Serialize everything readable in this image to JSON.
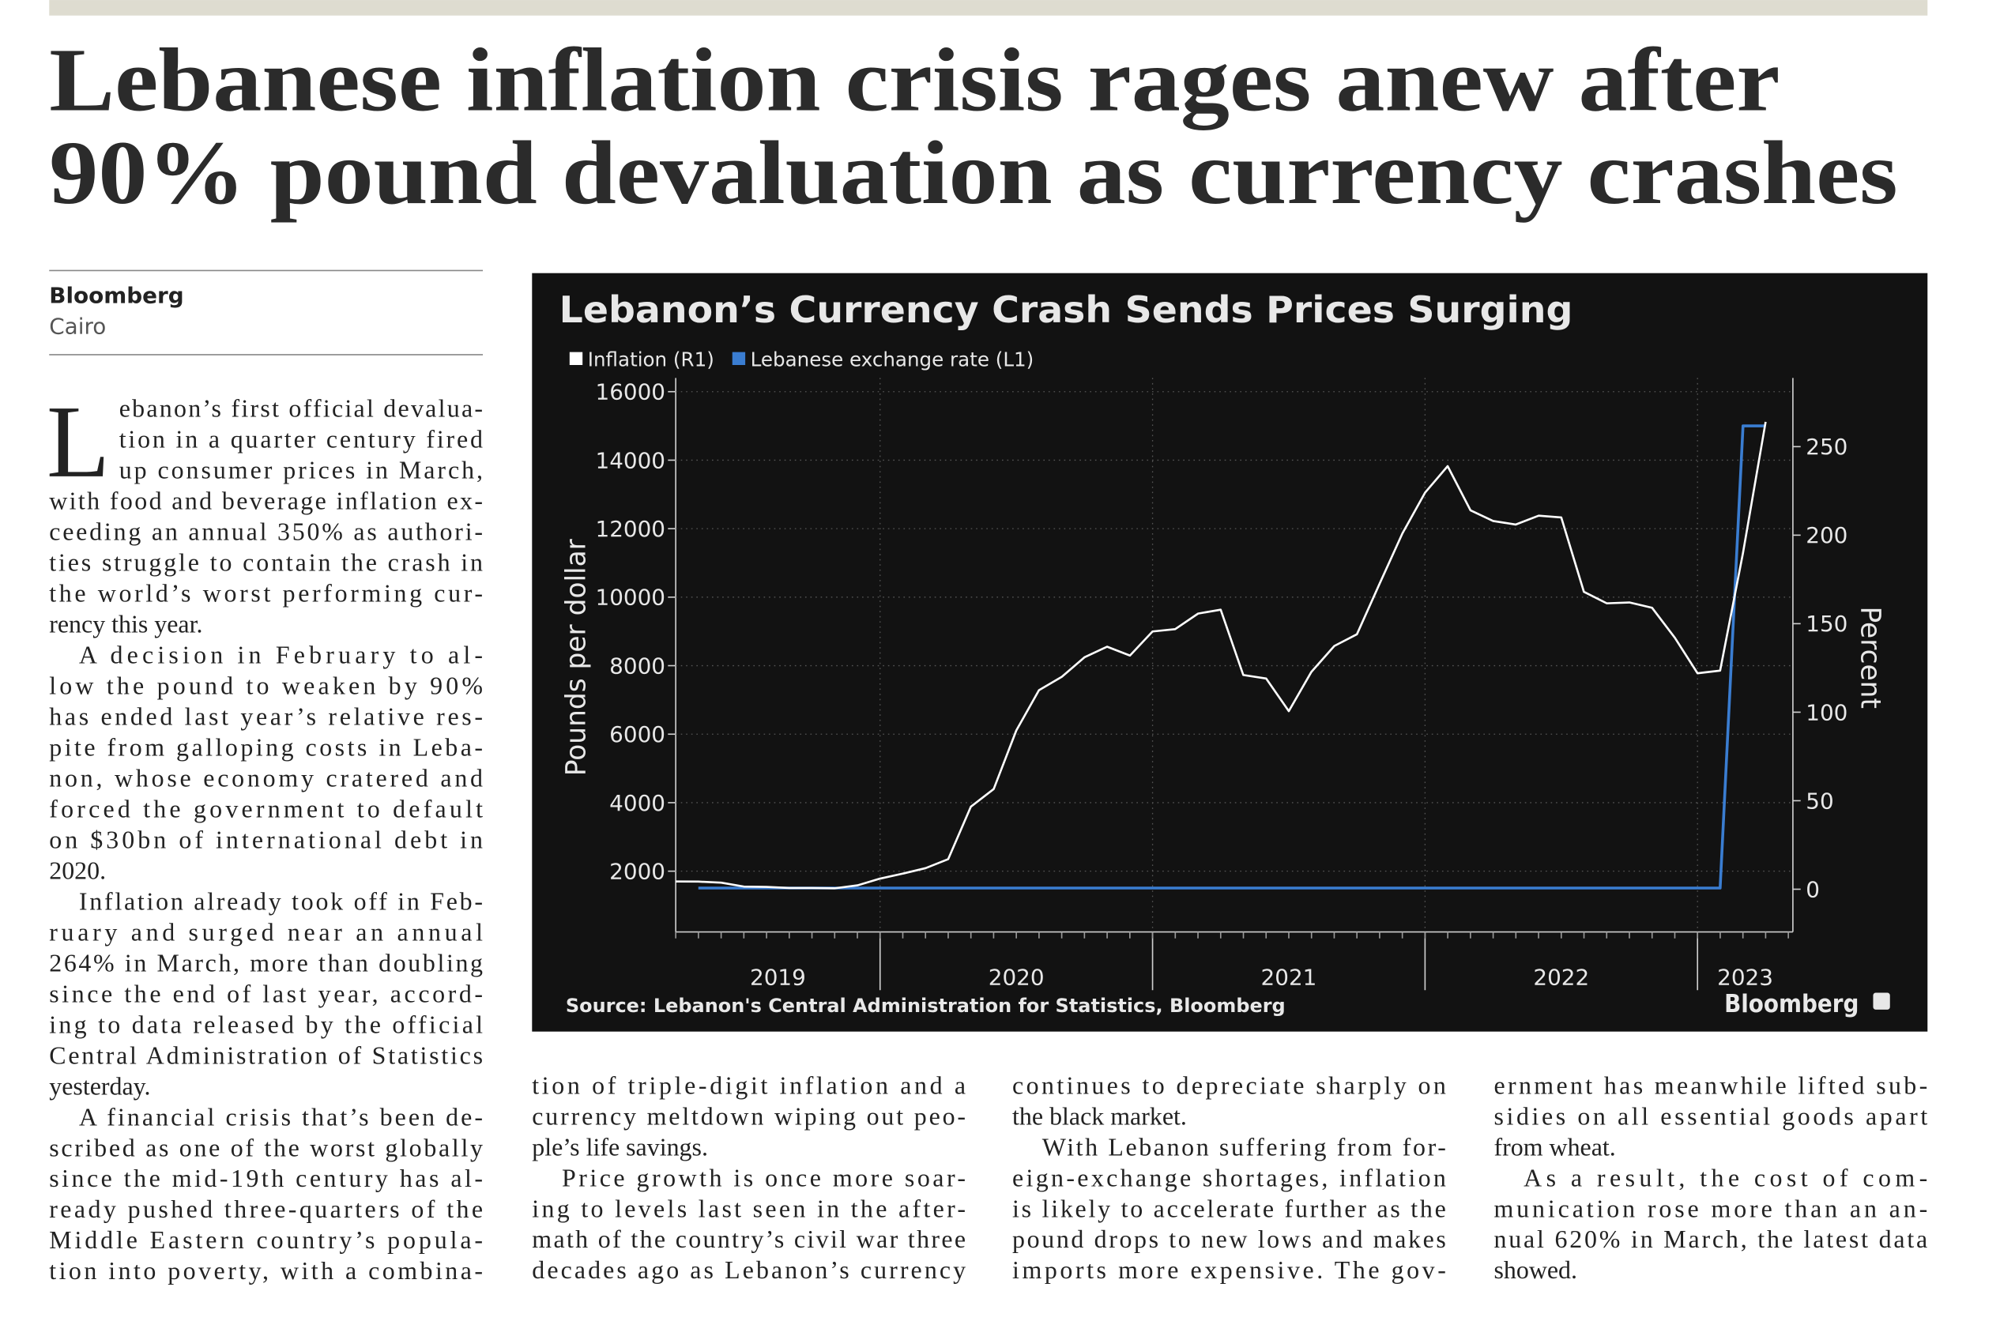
{
  "header": {
    "headline": [
      "Lebanese inflation crisis rages anew after",
      "90% pound devaluation as currency crashes"
    ]
  },
  "byline": {
    "source": "Bloomberg",
    "location": "Cairo"
  },
  "article": {
    "drop_cap": "L",
    "columns": [
      [
        [
          "ebanon’s first official devalua-",
          "tion in a quarter century fired",
          "up consumer prices in March,",
          "with food and beverage inflation ex-",
          "ceeding an annual 350% as authori-",
          "ties struggle to contain the crash in",
          "the world’s worst performing cur-",
          "rency this year."
        ],
        [
          "A decision in February to al-",
          "low the pound to weaken by 90%",
          "has ended last year’s relative res-",
          "pite from galloping costs in Leba-",
          "non, whose economy cratered and",
          "forced the government to default",
          "on $30bn of international debt in",
          "2020."
        ],
        [
          "Inflation already took off in Feb-",
          "ruary and surged near an annual",
          "264% in March, more than doubling",
          "since the end of last year, accord-",
          "ing to data released by the official",
          "Central Administration of Statistics",
          "yesterday."
        ],
        [
          "A financial crisis that’s been de-",
          "scribed as one of the worst globally",
          "since the mid-19th century has al-",
          "ready pushed three-quarters of the",
          "Middle Eastern country’s popula-",
          "tion into poverty, with a combina-"
        ]
      ],
      [
        [
          "tion of triple-digit inflation and a",
          "currency meltdown wiping out peo-",
          "ple’s life savings."
        ],
        [
          "Price growth is once more soar-",
          "ing to levels last seen in the after-",
          "math of the country’s civil war three",
          "decades ago as Lebanon’s currency"
        ]
      ],
      [
        [
          "continues to depreciate sharply on",
          "the black market."
        ],
        [
          "With Lebanon suffering from for-",
          "eign-exchange shortages, inflation",
          "is likely to accelerate further as the",
          "pound drops to new lows and makes",
          "imports more expensive. The gov-"
        ]
      ],
      [
        [
          "ernment has meanwhile lifted sub-",
          "sidies on all essential goods apart",
          "from wheat."
        ],
        [
          "As a result, the cost of com-",
          "munication rose more than an an-",
          "nual 620% in March, the latest data",
          "showed."
        ]
      ]
    ]
  },
  "chart_data": {
    "type": "line",
    "title": "Lebanon’s Currency Crash Sends Prices Surging",
    "y_label": "Pounds per dollar",
    "y2_label": "Percent",
    "source": "Source: Lebanon's Central Administration for Statistics, Bloomberg",
    "logo": "Bloomberg",
    "xlim": [
      2019.25,
      2023.35
    ],
    "xticks": [
      {
        "value": 2019,
        "label": "2019"
      },
      {
        "value": 2020,
        "label": "2020"
      },
      {
        "value": 2021,
        "label": "2021"
      },
      {
        "value": 2022,
        "label": "2022"
      },
      {
        "value": 2023,
        "label": "2023"
      }
    ],
    "ylim": [
      0,
      16400
    ],
    "yticks": [
      2000,
      4000,
      6000,
      8000,
      10000,
      12000,
      14000,
      16000
    ],
    "y2lim": [
      -28.5,
      288.8
    ],
    "y2ticks": [
      0,
      50,
      100,
      150,
      200,
      250
    ],
    "grid": true,
    "legend": "top-left",
    "series": [
      {
        "name": "Inflation (R1)",
        "color": "#ffffff",
        "axis": "y2",
        "x": [
          2019.25,
          2019.333,
          2019.417,
          2019.5,
          2019.583,
          2019.667,
          2019.75,
          2019.833,
          2019.917,
          2020,
          2020.083,
          2020.167,
          2020.25,
          2020.333,
          2020.417,
          2020.5,
          2020.583,
          2020.667,
          2020.75,
          2020.833,
          2020.917,
          2021,
          2021.083,
          2021.167,
          2021.25,
          2021.333,
          2021.417,
          2021.5,
          2021.583,
          2021.667,
          2021.75,
          2021.833,
          2021.917,
          2022,
          2022.083,
          2022.167,
          2022.25,
          2022.333,
          2022.417,
          2022.5,
          2022.583,
          2022.667,
          2022.75,
          2022.833,
          2022.917,
          2023,
          2023.083,
          2023.167,
          2023.25
        ],
        "values": [
          4.4,
          4.3,
          3.7,
          1.5,
          1.3,
          0.7,
          0.7,
          0.5,
          2.2,
          6,
          8.8,
          11.9,
          17,
          46.6,
          56.6,
          89.7,
          112.4,
          120,
          131,
          137,
          132,
          145.6,
          146.9,
          155.7,
          157.9,
          121,
          119,
          100.6,
          122.8,
          137.4,
          144,
          172.5,
          201,
          224,
          239,
          214,
          208,
          206,
          211,
          210,
          168,
          161.5,
          162,
          159,
          142,
          122,
          123.5,
          190,
          264
        ]
      },
      {
        "name": "Lebanese exchange rate (L1)",
        "color": "#3a7dd1",
        "x": [
          2019.333,
          2023.083,
          2023.167,
          2023.25
        ],
        "values": [
          1507.5,
          1507.5,
          15000,
          15000
        ]
      }
    ]
  }
}
